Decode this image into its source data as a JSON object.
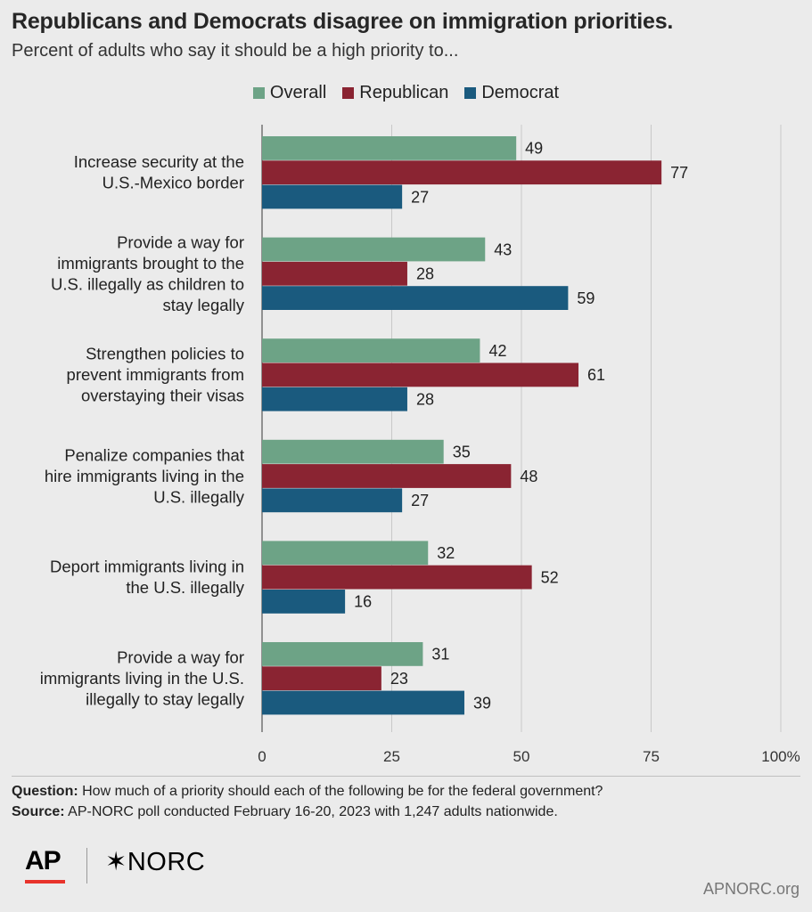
{
  "title": "Republicans and Democrats disagree on immigration priorities.",
  "subtitle": "Percent of adults who say it should be a high priority to...",
  "colors": {
    "overall": "#6da386",
    "republican": "#8a2432",
    "democrat": "#1a5a7e",
    "gridline": "#c8c8c8",
    "axis": "#555555"
  },
  "chart_data": {
    "type": "bar",
    "orientation": "horizontal",
    "categories": [
      [
        "Increase security at the",
        "U.S.-Mexico border"
      ],
      [
        "Provide a way for",
        "immigrants brought to the",
        "U.S. illegally as children to",
        "stay legally"
      ],
      [
        "Strengthen policies to",
        "prevent immigrants from",
        "overstaying their visas"
      ],
      [
        "Penalize companies that",
        "hire immigrants living in the",
        "U.S. illegally"
      ],
      [
        "Deport immigrants living in",
        "the U.S. illegally"
      ],
      [
        "Provide a way for",
        "immigrants living in the U.S.",
        "illegally to stay legally"
      ]
    ],
    "series": [
      {
        "name": "Overall",
        "color": "#6da386",
        "values": [
          49,
          43,
          42,
          35,
          32,
          31
        ]
      },
      {
        "name": "Republican",
        "color": "#8a2432",
        "values": [
          77,
          28,
          61,
          48,
          52,
          23
        ]
      },
      {
        "name": "Democrat",
        "color": "#1a5a7e",
        "values": [
          27,
          59,
          28,
          27,
          16,
          39
        ]
      }
    ],
    "xlim": [
      0,
      100
    ],
    "xticks": [
      "0",
      "25",
      "50",
      "75",
      "100%"
    ],
    "grid": true,
    "legend": "top-center"
  },
  "footer": {
    "question_label": "Question:",
    "question_text": "How much of a priority should each of the following be for the federal government?",
    "source_label": "Source:",
    "source_text": "AP-NORC poll conducted February 16-20, 2023 with 1,247 adults nationwide."
  },
  "logos": {
    "ap": "AP",
    "norc": "NORC",
    "norc_icon": "asterisk-icon"
  },
  "website": "APNORC.org"
}
